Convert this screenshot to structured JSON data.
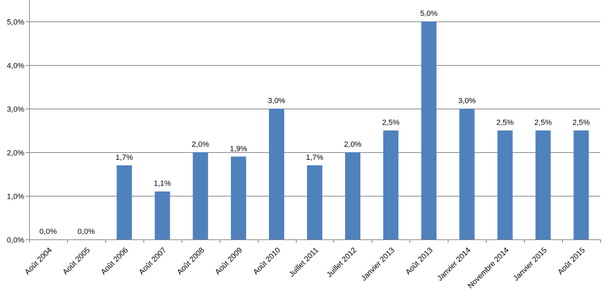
{
  "chart_data": {
    "type": "bar",
    "categories": [
      "Août 2004",
      "Août 2005",
      "Août 2006",
      "Août 2007",
      "Août 2008",
      "Août 2009",
      "Août 2010",
      "Juillet 2011",
      "Juillet 2012",
      "Janvier 2013",
      "Août 2013",
      "Janvier 2014",
      "Novembre 2014",
      "Janvier 2015",
      "Août 2015"
    ],
    "values": [
      0.0,
      0.0,
      1.7,
      1.1,
      2.0,
      1.9,
      3.0,
      1.7,
      2.0,
      2.5,
      5.0,
      3.0,
      2.5,
      2.5,
      2.5
    ],
    "data_labels": [
      "0,0%",
      "0,0%",
      "1,7%",
      "1,1%",
      "2,0%",
      "1,9%",
      "3,0%",
      "1,7%",
      "2,0%",
      "2,5%",
      "5,0%",
      "3,0%",
      "2,5%",
      "2,5%",
      "2,5%"
    ],
    "y_ticks": [
      0,
      1,
      2,
      3,
      4,
      5
    ],
    "y_tick_labels": [
      "0,0%",
      "1,0%",
      "2,0%",
      "3,0%",
      "4,0%",
      "5,0%"
    ],
    "ylim": [
      0,
      5
    ],
    "title": "",
    "xlabel": "",
    "ylabel": "",
    "grid": true,
    "legend": "none",
    "colors": {
      "bar": "#4F81BD",
      "grid": "#868686",
      "axis": "#868686"
    }
  }
}
